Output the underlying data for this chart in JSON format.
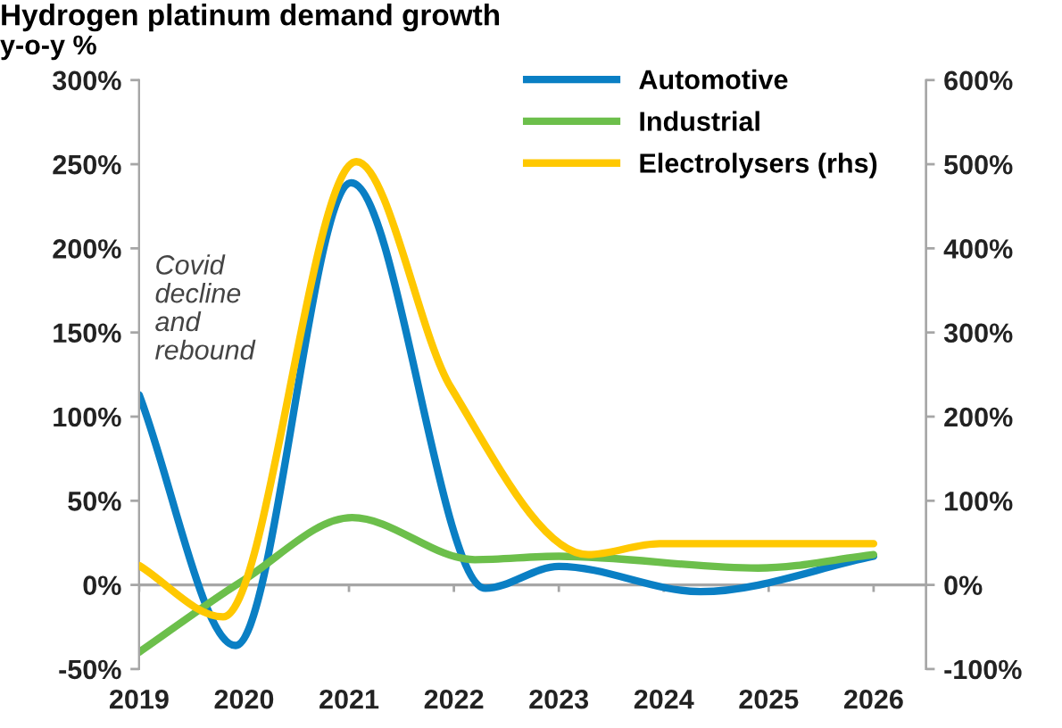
{
  "chart_data": {
    "type": "line",
    "title": "Hydrogen platinum demand growth",
    "ylabel": "y-o-y %",
    "series": [
      {
        "name": "Automotive",
        "color": "#0a7fc4",
        "x": [
          2019,
          2019.92,
          2021.02,
          2022.3,
          2023.0,
          2024.35,
          2026
        ],
        "values": [
          113,
          -36,
          239,
          -2,
          11,
          -4,
          17
        ]
      },
      {
        "name": "Industrial",
        "color": "#6cbf4b",
        "x": [
          2019,
          2020,
          2021.03,
          2022.2,
          2023.0,
          2024.9,
          2026
        ],
        "values": [
          -40,
          3,
          40,
          15,
          17,
          10,
          18
        ]
      },
      {
        "name": "Electrolysers (rhs)",
        "color": "#ffc800",
        "axis": "y2",
        "x": [
          2019,
          2019.8,
          2021.07,
          2021.97,
          2023.28,
          2023.96,
          2026
        ],
        "values": [
          23,
          -38,
          503,
          235,
          36,
          49,
          49
        ]
      }
    ],
    "xlim": [
      2019,
      2026.5
    ],
    "xticks": [
      2019,
      2020,
      2021,
      2022,
      2023,
      2024,
      2025,
      2026
    ],
    "ylim": [
      -50,
      300
    ],
    "yticks": [
      {
        "value": -50,
        "label": "-50%"
      },
      {
        "value": 0,
        "label": "0%"
      },
      {
        "value": 50,
        "label": "50%"
      },
      {
        "value": 100,
        "label": "100%"
      },
      {
        "value": 150,
        "label": "150%"
      },
      {
        "value": 200,
        "label": "200%"
      },
      {
        "value": 250,
        "label": "250%"
      },
      {
        "value": 300,
        "label": "300%"
      }
    ],
    "y2lim": [
      -100,
      600
    ],
    "y2ticks": [
      {
        "value": -100,
        "label": "-100%"
      },
      {
        "value": 0,
        "label": "0%"
      },
      {
        "value": 100,
        "label": "100%"
      },
      {
        "value": 200,
        "label": "200%"
      },
      {
        "value": 300,
        "label": "300%"
      },
      {
        "value": 400,
        "label": "400%"
      },
      {
        "value": 500,
        "label": "500%"
      },
      {
        "value": 600,
        "label": "600%"
      }
    ],
    "ref_lines": [
      {
        "axis": "y",
        "value": 0,
        "color": "#a6a6a6"
      }
    ],
    "annotations": [
      "Covid\ndecline\nand\nrebound"
    ],
    "legend": "top right",
    "grid": false,
    "marker": "none",
    "line_style": "solid"
  }
}
